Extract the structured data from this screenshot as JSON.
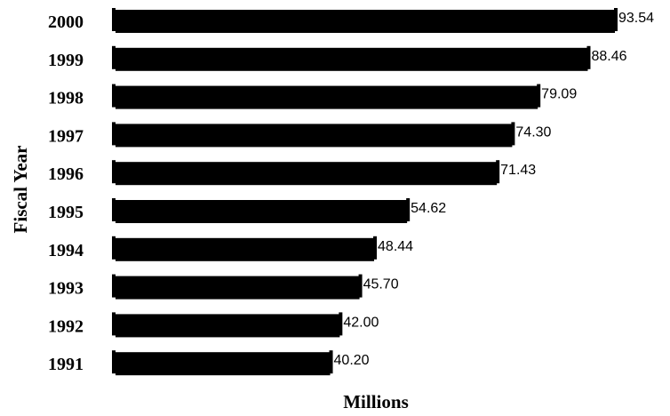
{
  "chart_data": {
    "type": "bar",
    "orientation": "horizontal",
    "categories": [
      "2000",
      "1999",
      "1998",
      "1997",
      "1996",
      "1995",
      "1994",
      "1993",
      "1992",
      "1991"
    ],
    "values": [
      93.54,
      88.46,
      79.09,
      74.3,
      71.43,
      54.62,
      48.44,
      45.7,
      42.0,
      40.2
    ],
    "value_labels": [
      "93.54",
      "88.46",
      "79.09",
      "74.30",
      "71.43",
      "54.62",
      "48.44",
      "45.70",
      "42.00",
      "40.20"
    ],
    "xlabel": "Millions",
    "ylabel": "Fiscal Year",
    "xlim": [
      0,
      93.54
    ],
    "grid": false,
    "legend": "none",
    "colors": {
      "bar": "#000000",
      "background": "#ffffff",
      "text": "#000000"
    }
  }
}
